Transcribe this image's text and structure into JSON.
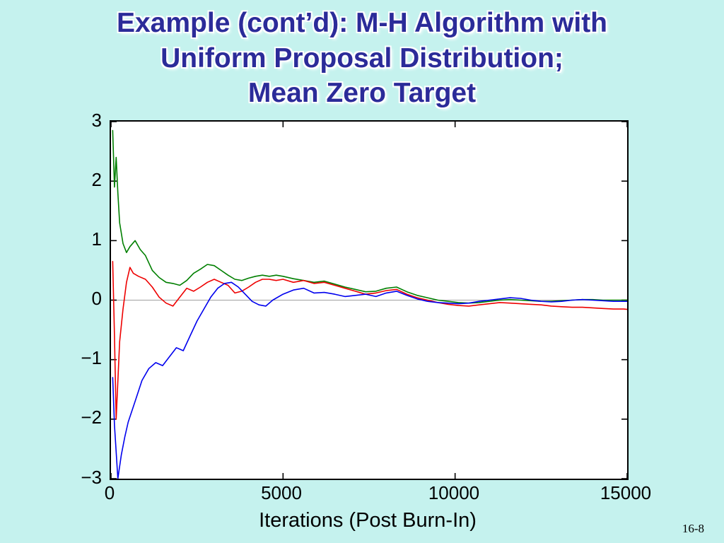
{
  "slide": {
    "title_lines": [
      "Example (cont’d): M-H Algorithm with",
      "Uniform Proposal Distribution;",
      "Mean Zero Target"
    ],
    "page_number": "16-8",
    "background_color": "#c5f2ee",
    "title_color": "#2b2b99"
  },
  "chart_data": {
    "type": "line",
    "title": "",
    "xlabel": "Iterations (Post Burn-In)",
    "ylabel": "",
    "xlim": [
      0,
      15000
    ],
    "ylim": [
      -3,
      3
    ],
    "xticks": [
      0,
      5000,
      10000,
      15000
    ],
    "yticks": [
      3,
      2,
      1,
      0,
      -1,
      -2,
      -3
    ],
    "xtick_labels": [
      "0",
      "5000",
      "10000",
      "15000"
    ],
    "ytick_labels": [
      "3",
      "2",
      "1",
      "0",
      "−1",
      "−2",
      "−3"
    ],
    "grid": false,
    "legend_position": "none",
    "zero_reference_line": true,
    "zero_line_color": "#a0a0a0",
    "axis_color": "#000000",
    "plot_background": "#ffffff",
    "series": [
      {
        "name": "chain-green",
        "color": "#007f00",
        "x": [
          50,
          100,
          150,
          200,
          250,
          350,
          450,
          550,
          700,
          850,
          1000,
          1200,
          1400,
          1600,
          1800,
          2000,
          2200,
          2400,
          2600,
          2800,
          3000,
          3200,
          3400,
          3600,
          3800,
          4000,
          4200,
          4400,
          4600,
          4800,
          5000,
          5300,
          5600,
          5900,
          6200,
          6500,
          6800,
          7100,
          7400,
          7700,
          8000,
          8300,
          8600,
          8900,
          9200,
          9500,
          9800,
          10100,
          10400,
          10700,
          11000,
          11300,
          11600,
          11900,
          12200,
          12500,
          12800,
          13100,
          13400,
          13700,
          14000,
          14300,
          14600,
          14900,
          15100
        ],
        "y": [
          2.85,
          1.9,
          2.4,
          1.8,
          1.3,
          0.95,
          0.8,
          0.9,
          1.0,
          0.85,
          0.75,
          0.5,
          0.38,
          0.3,
          0.28,
          0.25,
          0.33,
          0.45,
          0.52,
          0.6,
          0.58,
          0.5,
          0.42,
          0.35,
          0.33,
          0.37,
          0.4,
          0.42,
          0.4,
          0.42,
          0.4,
          0.36,
          0.33,
          0.3,
          0.32,
          0.27,
          0.22,
          0.18,
          0.14,
          0.15,
          0.2,
          0.22,
          0.14,
          0.08,
          0.04,
          0.0,
          -0.02,
          -0.04,
          -0.05,
          -0.04,
          -0.02,
          0.0,
          0.01,
          0.0,
          -0.01,
          -0.02,
          -0.02,
          -0.01,
          0.0,
          0.01,
          0.01,
          0.0,
          0.0,
          0.0,
          0.0
        ]
      },
      {
        "name": "chain-red",
        "color": "#ee0000",
        "x": [
          50,
          100,
          150,
          250,
          350,
          450,
          550,
          650,
          800,
          1000,
          1200,
          1400,
          1600,
          1800,
          2000,
          2200,
          2400,
          2600,
          2800,
          3000,
          3200,
          3400,
          3600,
          3800,
          4000,
          4200,
          4400,
          4600,
          4800,
          5000,
          5300,
          5600,
          5900,
          6200,
          6500,
          6800,
          7100,
          7400,
          7700,
          8000,
          8300,
          8600,
          8900,
          9200,
          9500,
          9800,
          10100,
          10400,
          10700,
          11000,
          11300,
          11600,
          11900,
          12200,
          12500,
          12800,
          13100,
          13400,
          13700,
          14000,
          14300,
          14600,
          14900,
          15100
        ],
        "y": [
          0.65,
          -0.6,
          -2.0,
          -0.7,
          -0.15,
          0.3,
          0.55,
          0.45,
          0.4,
          0.35,
          0.22,
          0.05,
          -0.05,
          -0.1,
          0.05,
          0.2,
          0.15,
          0.22,
          0.3,
          0.35,
          0.3,
          0.25,
          0.12,
          0.15,
          0.22,
          0.3,
          0.35,
          0.35,
          0.33,
          0.35,
          0.3,
          0.33,
          0.28,
          0.3,
          0.25,
          0.2,
          0.15,
          0.1,
          0.12,
          0.16,
          0.18,
          0.1,
          0.04,
          0.0,
          -0.04,
          -0.07,
          -0.09,
          -0.1,
          -0.08,
          -0.06,
          -0.04,
          -0.05,
          -0.06,
          -0.07,
          -0.08,
          -0.1,
          -0.11,
          -0.12,
          -0.12,
          -0.13,
          -0.14,
          -0.15,
          -0.15,
          -0.16
        ]
      },
      {
        "name": "chain-blue",
        "color": "#0000ee",
        "x": [
          50,
          100,
          200,
          300,
          400,
          500,
          700,
          900,
          1100,
          1300,
          1500,
          1700,
          1900,
          2100,
          2300,
          2500,
          2700,
          2900,
          3100,
          3300,
          3500,
          3700,
          3900,
          4100,
          4300,
          4500,
          4700,
          5000,
          5300,
          5600,
          5900,
          6200,
          6500,
          6800,
          7100,
          7400,
          7700,
          8000,
          8300,
          8600,
          8900,
          9200,
          9500,
          9800,
          10100,
          10400,
          10700,
          11000,
          11300,
          11600,
          11900,
          12200,
          12500,
          12800,
          13100,
          13400,
          13700,
          14000,
          14300,
          14600,
          14900,
          15100
        ],
        "y": [
          -1.3,
          -2.1,
          -3.0,
          -2.6,
          -2.3,
          -2.05,
          -1.7,
          -1.35,
          -1.15,
          -1.05,
          -1.1,
          -0.95,
          -0.8,
          -0.85,
          -0.6,
          -0.35,
          -0.15,
          0.05,
          0.2,
          0.28,
          0.3,
          0.22,
          0.1,
          -0.02,
          -0.08,
          -0.1,
          0.0,
          0.1,
          0.17,
          0.2,
          0.12,
          0.13,
          0.1,
          0.06,
          0.08,
          0.1,
          0.06,
          0.12,
          0.15,
          0.08,
          0.02,
          -0.02,
          -0.04,
          -0.05,
          -0.06,
          -0.05,
          -0.02,
          0.0,
          0.02,
          0.04,
          0.03,
          0.0,
          -0.02,
          -0.03,
          -0.02,
          0.0,
          0.01,
          0.0,
          -0.01,
          -0.02,
          -0.02,
          -0.02
        ]
      }
    ]
  }
}
